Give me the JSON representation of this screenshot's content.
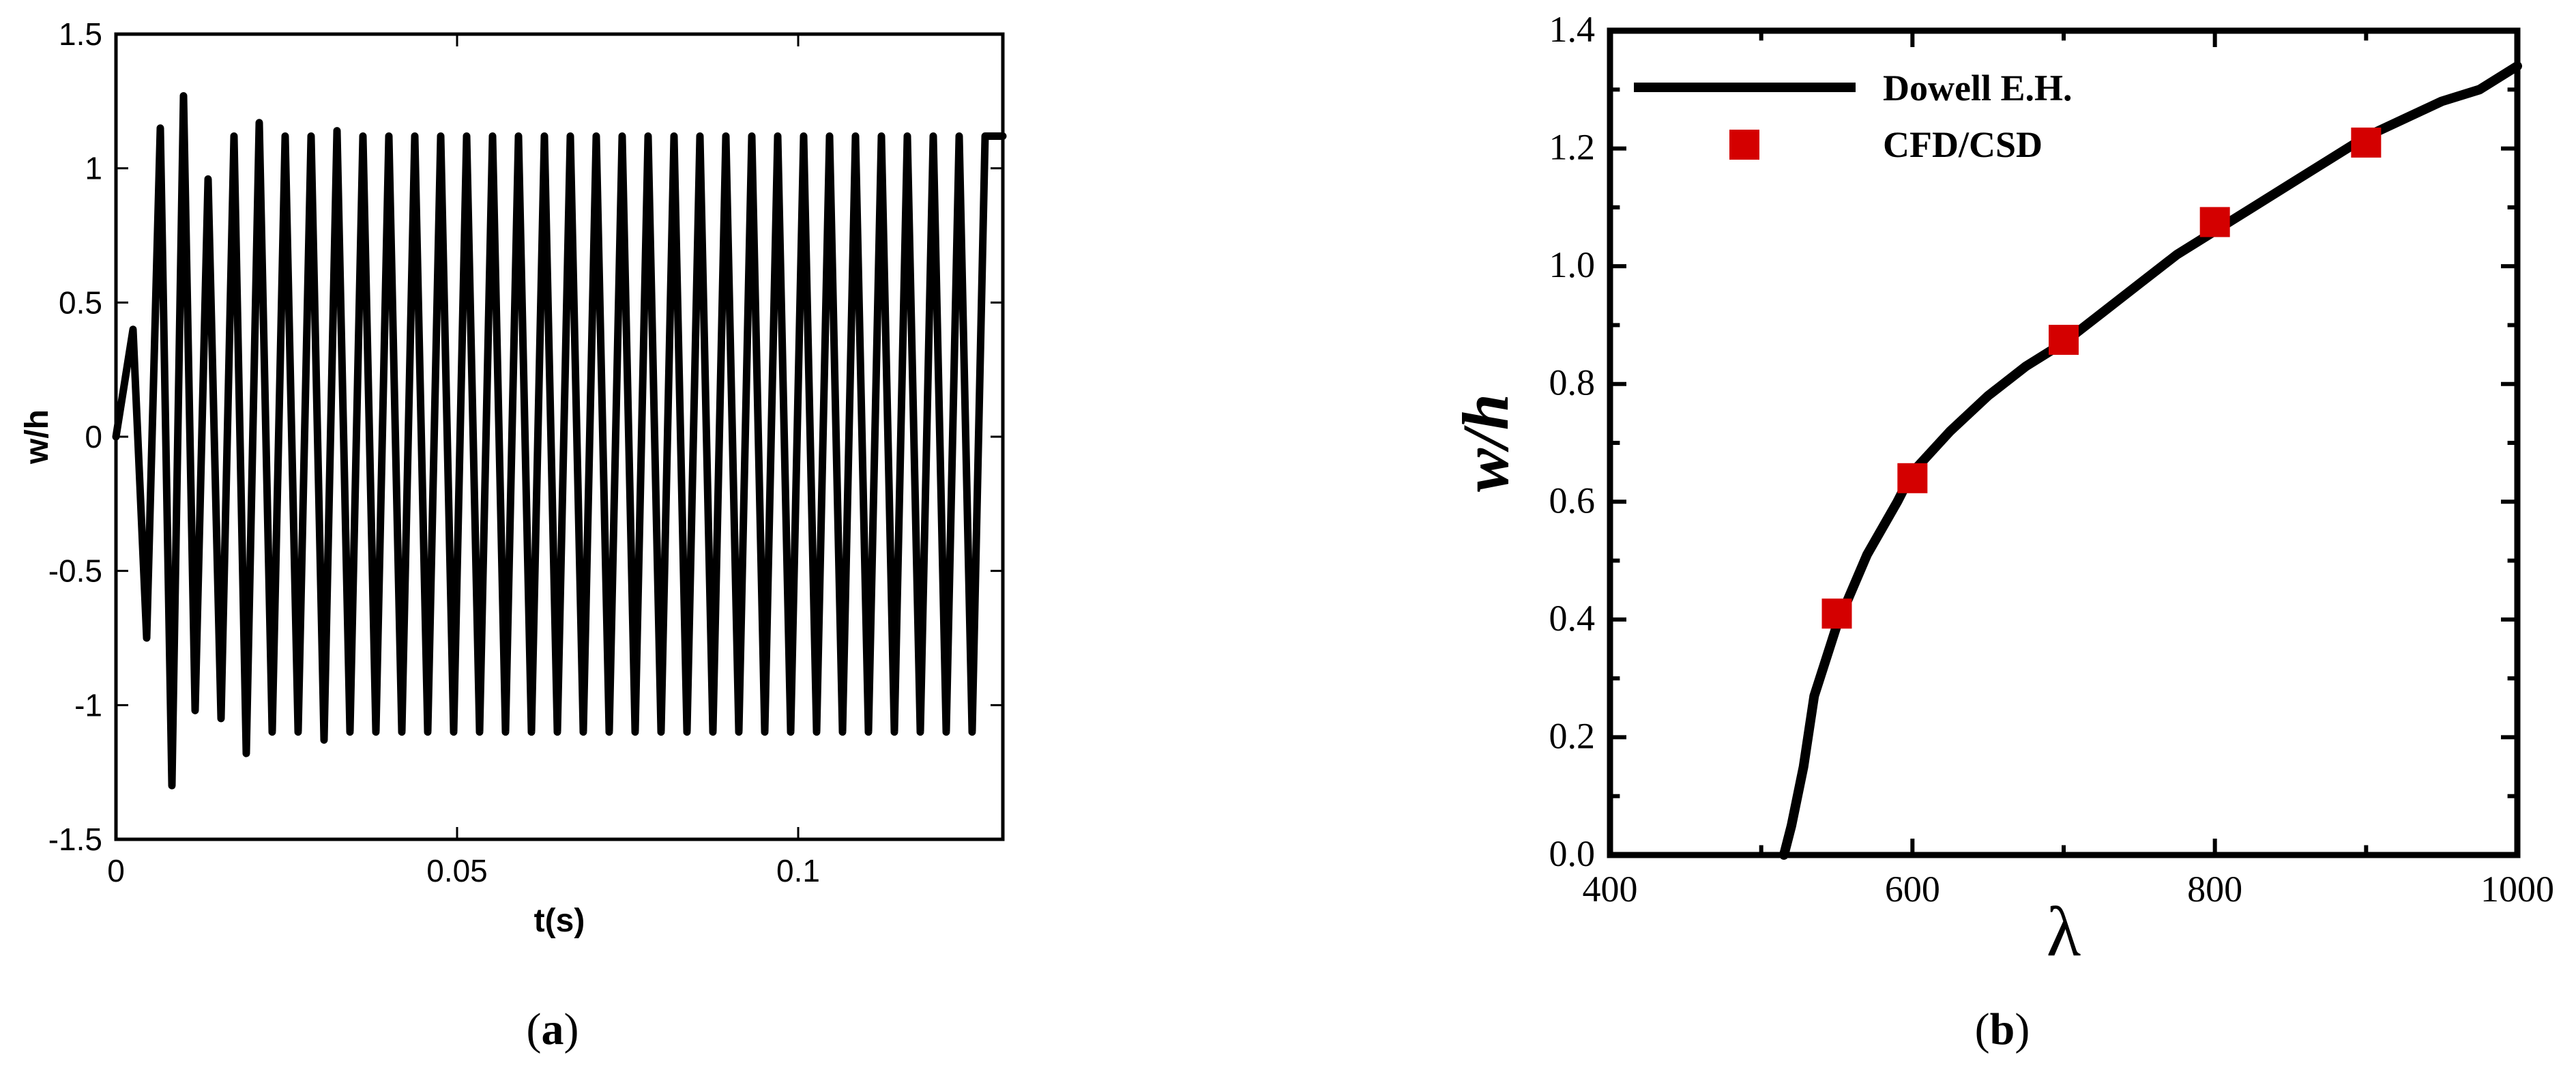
{
  "chart_data": [
    {
      "type": "line",
      "caption_letter": "a",
      "xlabel": "t(s)",
      "ylabel": "w/h",
      "xlim": [
        0,
        0.13
      ],
      "ylim": [
        -1.5,
        1.5
      ],
      "xticks": [
        0,
        0.05,
        0.1
      ],
      "xtick_labels": [
        "0",
        "0.05",
        "0.1"
      ],
      "yticks": [
        -1.5,
        -1,
        -0.5,
        0,
        0.5,
        1,
        1.5
      ],
      "ytick_labels": [
        "-1.5",
        "-1",
        "-0.5",
        "0",
        "0.5",
        "1",
        "1.5"
      ],
      "grid": false,
      "series": [
        {
          "color": "#000000",
          "x": [
            0,
            0.0025,
            0.0045,
            0.0065,
            0.0082,
            0.0099,
            0.0116,
            0.0135,
            0.0154,
            0.0173,
            0.0191,
            0.021,
            0.0229,
            0.0248,
            0.0267,
            0.0286,
            0.0305,
            0.0324,
            0.0343,
            0.0362,
            0.0381,
            0.04,
            0.0419,
            0.0438,
            0.0457,
            0.0476,
            0.0495,
            0.0514,
            0.0533,
            0.0552,
            0.0571,
            0.059,
            0.0609,
            0.0628,
            0.0647,
            0.0666,
            0.0685,
            0.0704,
            0.0723,
            0.0742,
            0.0761,
            0.078,
            0.0799,
            0.0818,
            0.0837,
            0.0856,
            0.0875,
            0.0894,
            0.0913,
            0.0932,
            0.0951,
            0.097,
            0.0989,
            0.1008,
            0.1027,
            0.1046,
            0.1065,
            0.1084,
            0.1103,
            0.1122,
            0.1141,
            0.116,
            0.1179,
            0.1198,
            0.1217,
            0.1236,
            0.1255,
            0.1274,
            0.13
          ],
          "y": [
            0,
            0.4,
            -0.75,
            1.15,
            -1.3,
            1.27,
            -1.02,
            0.96,
            -1.05,
            1.12,
            -1.18,
            1.17,
            -1.1,
            1.12,
            -1.1,
            1.12,
            -1.13,
            1.14,
            -1.1,
            1.12,
            -1.1,
            1.12,
            -1.1,
            1.12,
            -1.1,
            1.12,
            -1.1,
            1.12,
            -1.1,
            1.12,
            -1.1,
            1.12,
            -1.1,
            1.12,
            -1.1,
            1.12,
            -1.1,
            1.12,
            -1.1,
            1.12,
            -1.1,
            1.12,
            -1.1,
            1.12,
            -1.1,
            1.12,
            -1.1,
            1.12,
            -1.1,
            1.12,
            -1.1,
            1.12,
            -1.1,
            1.12,
            -1.1,
            1.12,
            -1.1,
            1.12,
            -1.1,
            1.12,
            -1.1,
            1.12,
            -1.1,
            1.12,
            -1.1,
            1.12,
            -1.1,
            1.12,
            1.12
          ]
        }
      ]
    },
    {
      "type": "line",
      "caption_letter": "b",
      "xlabel": "λ",
      "ylabel": "w/h",
      "xlim": [
        400,
        1000
      ],
      "ylim": [
        0,
        1.4
      ],
      "xticks": [
        400,
        600,
        800,
        1000
      ],
      "xtick_labels": [
        "400",
        "600",
        "800",
        "1000"
      ],
      "yticks": [
        0,
        0.2,
        0.4,
        0.6,
        0.8,
        1.0,
        1.2,
        1.4
      ],
      "ytick_labels": [
        "0.0",
        "0.2",
        "0.4",
        "0.6",
        "0.8",
        "1.0",
        "1.2",
        "1.4"
      ],
      "grid": false,
      "legend_position": "top-left",
      "series": [
        {
          "name": "Dowell E.H.",
          "style": "line",
          "color": "#000000",
          "x": [
            515,
            520,
            528,
            535,
            550,
            570,
            590,
            600,
            625,
            650,
            675,
            700,
            725,
            750,
            775,
            800,
            825,
            850,
            875,
            900,
            925,
            950,
            975,
            1000
          ],
          "y": [
            0.0,
            0.05,
            0.15,
            0.27,
            0.39,
            0.51,
            0.6,
            0.65,
            0.72,
            0.78,
            0.83,
            0.87,
            0.92,
            0.97,
            1.02,
            1.06,
            1.1,
            1.14,
            1.18,
            1.22,
            1.25,
            1.28,
            1.3,
            1.34
          ]
        },
        {
          "name": "CFD/CSD",
          "style": "marker",
          "color": "#d40000",
          "x": [
            550,
            600,
            700,
            800,
            900
          ],
          "y": [
            0.41,
            0.64,
            0.875,
            1.075,
            1.21
          ]
        }
      ]
    }
  ]
}
